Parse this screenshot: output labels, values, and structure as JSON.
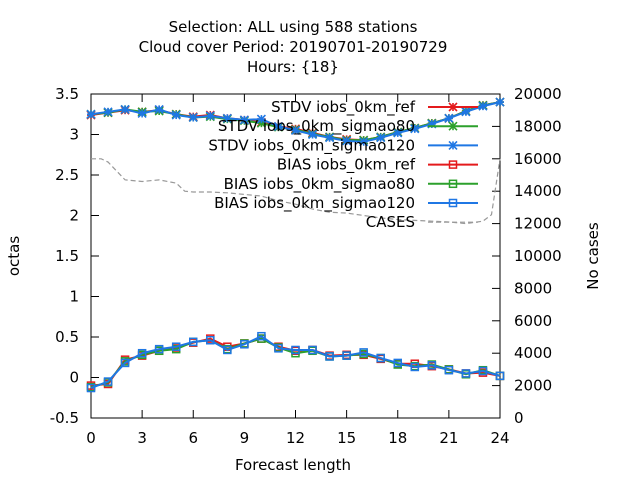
{
  "chart_data": {
    "type": "line",
    "title_lines": [
      "Selection: ALL using   588 stations",
      "Cloud cover   Period: 20190701-20190729",
      "Hours: {18}"
    ],
    "xlabel": "Forecast length",
    "ylabel": "octas",
    "y2label": "No cases",
    "xlim": [
      0,
      24
    ],
    "ylim": [
      -0.5,
      3.5
    ],
    "y2lim": [
      0,
      20000
    ],
    "xticks": [
      "0",
      "3",
      "6",
      "9",
      "12",
      "15",
      "18",
      "21",
      "24"
    ],
    "yticks": [
      "-0.5",
      "0",
      "0.5",
      "1",
      "1.5",
      "2",
      "2.5",
      "3",
      "3.5"
    ],
    "y2ticks": [
      "0",
      "2000",
      "4000",
      "6000",
      "8000",
      "10000",
      "12000",
      "14000",
      "16000",
      "18000",
      "20000"
    ],
    "legend_position": "top-right",
    "x": [
      0,
      1,
      2,
      3,
      4,
      5,
      6,
      7,
      8,
      9,
      10,
      11,
      12,
      13,
      14,
      15,
      16,
      17,
      18,
      19,
      20,
      21,
      22,
      23,
      24
    ],
    "series": [
      {
        "name": "STDV iobs_0km_ref",
        "color": "#e41a1c",
        "marker": "x",
        "axis": "y1",
        "values": [
          3.24,
          3.27,
          3.3,
          3.28,
          3.3,
          3.25,
          3.22,
          3.24,
          3.2,
          3.18,
          3.15,
          3.1,
          3.07,
          3.02,
          2.97,
          2.94,
          2.93,
          2.97,
          3.03,
          3.08,
          3.14,
          3.2,
          3.29,
          3.36,
          3.4
        ]
      },
      {
        "name": "STDV iobs_0km_sigmao80",
        "color": "#2ca02c",
        "marker": "x",
        "axis": "y1",
        "values": [
          3.25,
          3.27,
          3.31,
          3.28,
          3.29,
          3.25,
          3.21,
          3.22,
          3.19,
          3.17,
          3.14,
          3.09,
          3.06,
          3.01,
          2.97,
          2.93,
          2.93,
          2.97,
          3.03,
          3.08,
          3.14,
          3.2,
          3.29,
          3.36,
          3.4
        ]
      },
      {
        "name": "STDV iobs_0km_sigmao120",
        "color": "#1f77e4",
        "marker": "x",
        "axis": "y1",
        "values": [
          3.25,
          3.28,
          3.31,
          3.26,
          3.31,
          3.24,
          3.21,
          3.23,
          3.2,
          3.18,
          3.19,
          3.1,
          3.05,
          3.0,
          2.96,
          2.92,
          2.91,
          2.96,
          3.02,
          3.07,
          3.13,
          3.2,
          3.28,
          3.35,
          3.4
        ]
      },
      {
        "name": "BIAS iobs_0km_ref",
        "color": "#e41a1c",
        "marker": "square",
        "axis": "y1",
        "values": [
          -0.1,
          -0.08,
          0.22,
          0.27,
          0.33,
          0.37,
          0.43,
          0.48,
          0.38,
          0.42,
          0.48,
          0.38,
          0.33,
          0.34,
          0.27,
          0.28,
          0.28,
          0.23,
          0.17,
          0.17,
          0.14,
          0.1,
          0.05,
          0.06,
          0.02
        ]
      },
      {
        "name": "BIAS iobs_0km_sigmao80",
        "color": "#2ca02c",
        "marker": "square",
        "axis": "y1",
        "values": [
          -0.12,
          -0.06,
          0.2,
          0.28,
          0.33,
          0.35,
          0.44,
          0.46,
          0.35,
          0.42,
          0.48,
          0.37,
          0.3,
          0.33,
          0.26,
          0.27,
          0.29,
          0.24,
          0.16,
          0.14,
          0.16,
          0.1,
          0.04,
          0.09,
          0.02
        ]
      },
      {
        "name": "BIAS iobs_0km_sigmao120",
        "color": "#1f77e4",
        "marker": "square",
        "axis": "y1",
        "values": [
          -0.13,
          -0.05,
          0.18,
          0.3,
          0.35,
          0.38,
          0.44,
          0.46,
          0.34,
          0.41,
          0.51,
          0.36,
          0.34,
          0.34,
          0.26,
          0.27,
          0.31,
          0.24,
          0.18,
          0.13,
          0.15,
          0.09,
          0.05,
          0.08,
          0.02
        ]
      },
      {
        "name": "CASES",
        "color": "#999999",
        "marker": "none",
        "dashed": true,
        "axis": "y2",
        "values": [
          16000,
          15800,
          14700,
          14600,
          14700,
          14500,
          14000,
          13950,
          13900,
          13800,
          13700,
          13400,
          13200,
          12900,
          12700,
          12650,
          12500,
          12350,
          12250,
          12200,
          12150,
          12100,
          12000,
          12150,
          12300,
          12550,
          12950,
          13700,
          14350,
          15400,
          16000
        ],
        "x": [
          0,
          0.8,
          2,
          3,
          4,
          5.5,
          6,
          7,
          8,
          9,
          10,
          11,
          12,
          13,
          14,
          15,
          16,
          17,
          18,
          19,
          20,
          21,
          22,
          22.5,
          23,
          23.5,
          24,
          24,
          24,
          24,
          24
        ]
      }
    ]
  }
}
